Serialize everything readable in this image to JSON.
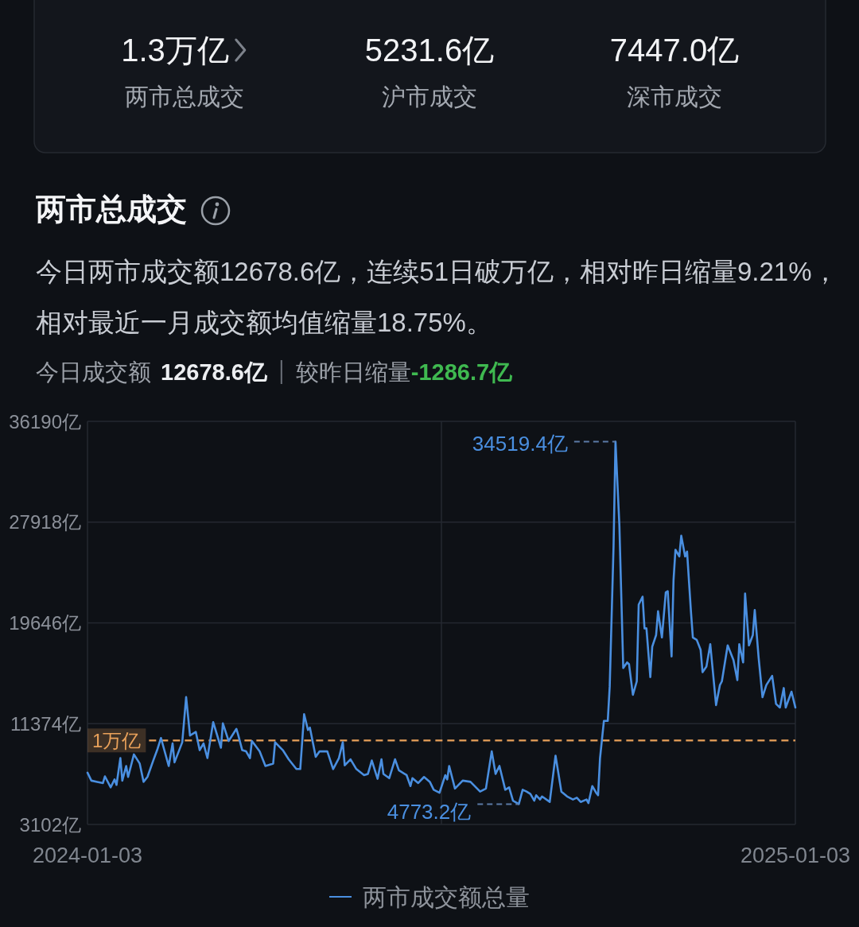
{
  "chart_data": [
    {
      "type": "other",
      "annotations": [
        "1.3万亿",
        "两市总成交",
        "5231.6亿",
        "沪市成交",
        "7447.0亿",
        "深市成交"
      ]
    },
    {
      "type": "line",
      "title": "两市总成交",
      "subtitle": "今日两市成交额12678.6亿，连续51日破万亿，相对昨日缩量9.21%，相对最近一月成交额均值缩量18.75%。",
      "annotations": [
        "今日成交额",
        "12678.6亿",
        "较昨日缩量",
        "-1286.7亿",
        {
          "text": "34519.4亿",
          "x": "2024-10-02",
          "y": 34519.4
        },
        {
          "text": "4773.2亿",
          "x": "2024-08-13",
          "y": 4773.2
        }
      ],
      "x": [
        "2024-01-03",
        "2024-01-05",
        "2024-01-08",
        "2024-01-11",
        "2024-01-12",
        "2024-01-15",
        "2024-01-17",
        "2024-01-18",
        "2024-01-20",
        "2024-01-21",
        "2024-01-23",
        "2024-01-24",
        "2024-01-27",
        "2024-01-30",
        "2024-02-01",
        "2024-02-03",
        "2024-02-06",
        "2024-02-08",
        "2024-02-10",
        "2024-02-14",
        "2024-02-16",
        "2024-02-17",
        "2024-02-21",
        "2024-02-23",
        "2024-02-25",
        "2024-02-28",
        "2024-03-01",
        "2024-03-03",
        "2024-03-05",
        "2024-03-08",
        "2024-03-12",
        "2024-03-13",
        "2024-03-16",
        "2024-03-20",
        "2024-03-21",
        "2024-03-23",
        "2024-03-25",
        "2024-03-27",
        "2024-03-28",
        "2024-04-01",
        "2024-04-04",
        "2024-04-08",
        "2024-04-09",
        "2024-04-13",
        "2024-04-16",
        "2024-04-20",
        "2024-04-22",
        "2024-04-24",
        "2024-04-26",
        "2024-04-27",
        "2024-04-30",
        "2024-05-02",
        "2024-05-06",
        "2024-05-09",
        "2024-05-12",
        "2024-05-14",
        "2024-05-15",
        "2024-05-18",
        "2024-05-21",
        "2024-05-25",
        "2024-05-27",
        "2024-05-29",
        "2024-06-01",
        "2024-06-03",
        "2024-06-04",
        "2024-06-07",
        "2024-06-10",
        "2024-06-12",
        "2024-06-16",
        "2024-06-18",
        "2024-06-19",
        "2024-06-22",
        "2024-06-25",
        "2024-06-28",
        "2024-06-30",
        "2024-07-03",
        "2024-07-06",
        "2024-07-07",
        "2024-07-08",
        "2024-07-11",
        "2024-07-15",
        "2024-07-19",
        "2024-07-24",
        "2024-07-27",
        "2024-07-30",
        "2024-08-01",
        "2024-08-03",
        "2024-08-06",
        "2024-08-08",
        "2024-08-10",
        "2024-08-13",
        "2024-08-15",
        "2024-08-17",
        "2024-08-19",
        "2024-08-21",
        "2024-08-22",
        "2024-08-24",
        "2024-08-25",
        "2024-08-29",
        "2024-09-01",
        "2024-09-04",
        "2024-09-07",
        "2024-09-10",
        "2024-09-12",
        "2024-09-14",
        "2024-09-17",
        "2024-09-18",
        "2024-09-20",
        "2024-09-22",
        "2024-09-23",
        "2024-09-24",
        "2024-09-26",
        "2024-09-28",
        "2024-09-29",
        "2024-10-01",
        "2024-10-02",
        "2024-10-04",
        "2024-10-06",
        "2024-10-08",
        "2024-10-09",
        "2024-10-11",
        "2024-10-13",
        "2024-10-14",
        "2024-10-16",
        "2024-10-17",
        "2024-10-18",
        "2024-10-20",
        "2024-10-21",
        "2024-10-23",
        "2024-10-24",
        "2024-10-26",
        "2024-10-28",
        "2024-10-29",
        "2024-10-31",
        "2024-11-01",
        "2024-11-02",
        "2024-11-04",
        "2024-11-05",
        "2024-11-07",
        "2024-11-08",
        "2024-11-10",
        "2024-11-11",
        "2024-11-13",
        "2024-11-15",
        "2024-11-16",
        "2024-11-18",
        "2024-11-20",
        "2024-11-23",
        "2024-11-25",
        "2024-11-26",
        "2024-11-29",
        "2024-12-02",
        "2024-12-04",
        "2024-12-05",
        "2024-12-07",
        "2024-12-08",
        "2024-12-10",
        "2024-12-12",
        "2024-12-13",
        "2024-12-15",
        "2024-12-17",
        "2024-12-19",
        "2024-12-22",
        "2024-12-24",
        "2024-12-26",
        "2024-12-28",
        "2024-12-29",
        "2025-01-01",
        "2025-01-03"
      ],
      "series": [
        {
          "name": "两市成交额总量",
          "color": "#4a8fe0",
          "values": [
            7350,
            6700,
            6600,
            6500,
            7050,
            6150,
            6800,
            6350,
            8550,
            6700,
            7900,
            7000,
            8850,
            8100,
            6600,
            7000,
            8350,
            9200,
            10200,
            7900,
            9750,
            8200,
            9850,
            13550,
            10400,
            10700,
            9200,
            9750,
            8550,
            11500,
            9400,
            11400,
            9950,
            10950,
            10400,
            9200,
            9100,
            8550,
            9950,
            9100,
            7900,
            8100,
            9850,
            9200,
            8450,
            7650,
            7650,
            12150,
            10850,
            11050,
            8650,
            9100,
            9100,
            7650,
            8550,
            9850,
            7950,
            8450,
            7650,
            7150,
            7250,
            8350,
            6850,
            8450,
            7250,
            6900,
            8450,
            7550,
            7150,
            6250,
            6900,
            6500,
            7000,
            6600,
            5950,
            5700,
            7150,
            6800,
            7900,
            6050,
            6700,
            6600,
            5800,
            6050,
            9100,
            7250,
            7900,
            5950,
            6150,
            5050,
            4773.2,
            5950,
            5800,
            5600,
            5050,
            5500,
            5150,
            5400,
            4950,
            8750,
            5800,
            5400,
            5150,
            5300,
            4950,
            5150,
            4850,
            6250,
            5700,
            5500,
            8550,
            11600,
            11600,
            14400,
            25950,
            34519.4,
            27700,
            15950,
            16400,
            16250,
            13750,
            14850,
            21150,
            21800,
            19200,
            19200,
            15200,
            17700,
            18650,
            20600,
            18450,
            22150,
            22250,
            16900,
            23150,
            25650,
            25100,
            26800,
            25100,
            25500,
            20600,
            18450,
            18250,
            17450,
            15600,
            16050,
            17900,
            12900,
            14550,
            14850,
            17800,
            16600,
            14950,
            17900,
            16400,
            22050,
            17800,
            18650,
            20700,
            16800,
            13550,
            14550,
            15300,
            13000,
            12700,
            14300,
            12700,
            14000,
            12700
          ]
        }
      ],
      "xlim": [
        "2024-01-03",
        "2025-01-03"
      ],
      "xticks": [
        "2024-01-03",
        {
          "value": "2024-07-04",
          "label": null
        },
        "2025-01-03"
      ],
      "ylim": [
        3102,
        36190
      ],
      "yticks": [
        {
          "value": 3102,
          "label": "3102亿"
        },
        {
          "value": 11374,
          "label": "11374亿"
        },
        {
          "value": 19646,
          "label": "19646亿"
        },
        {
          "value": 27918,
          "label": "27918亿"
        },
        {
          "value": 36190,
          "label": "36190亿"
        }
      ],
      "ref_lines": [
        {
          "axis": "y",
          "value": 10000,
          "label": "1万亿",
          "color": "#e9a15a",
          "line_style": "dashed"
        }
      ],
      "grid": true,
      "legend": "bottom"
    }
  ]
}
